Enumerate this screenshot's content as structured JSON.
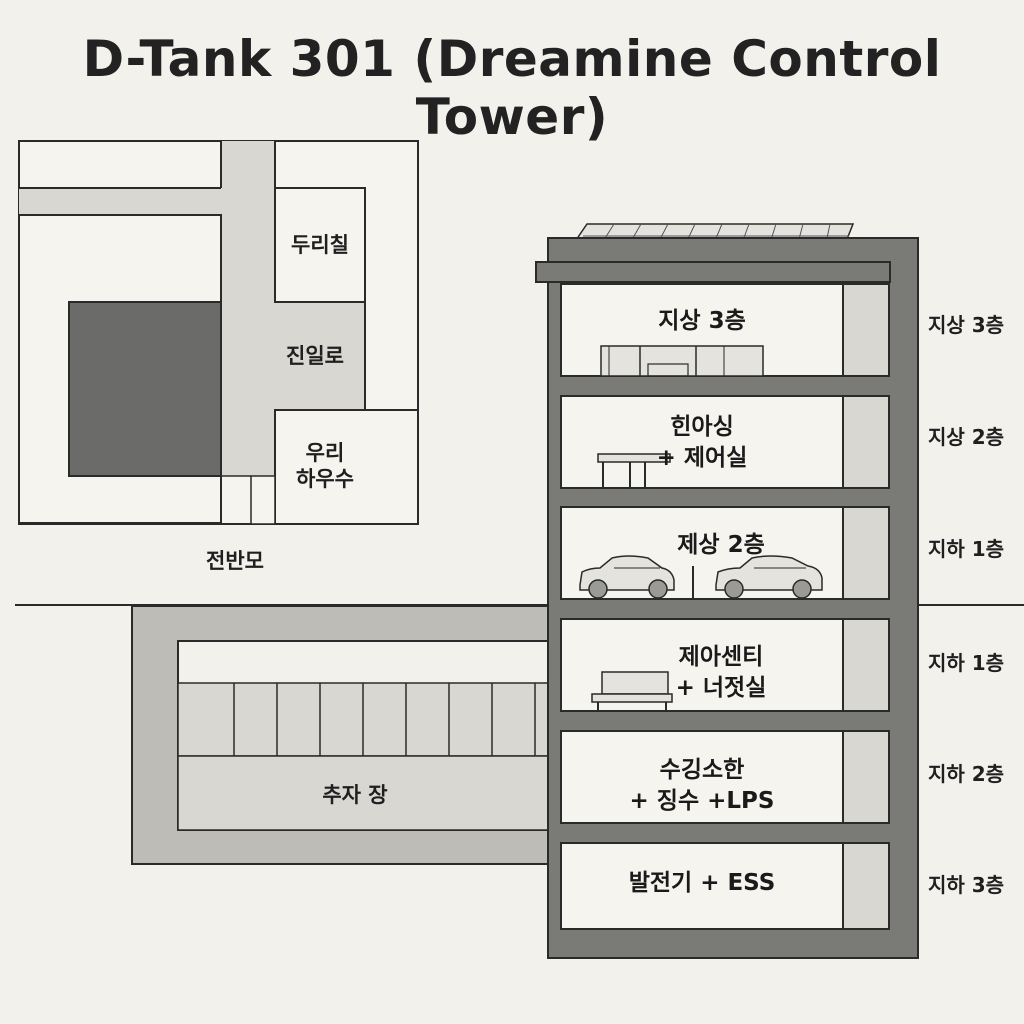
{
  "title": "D-Tank 301 (Dreamine Control Tower)",
  "site_plan": {
    "room_top": "두리칠",
    "corridor": "진일로",
    "house": "우리\n하우수",
    "road": "전반모"
  },
  "parking": {
    "label": "추자 장"
  },
  "floors": [
    {
      "title": "지상 3층",
      "side_label": "지상 3층",
      "icon": "furniture-icon"
    },
    {
      "title": "힌아싱\n+ 제어실",
      "side_label": "지상 2층",
      "icon": "desk-icon"
    },
    {
      "title": "제상 2층",
      "side_label": "지하 1층",
      "icon": "car-icon"
    },
    {
      "title": "제아센티\n+ 너젓실",
      "side_label": "지하 1층",
      "icon": "bench-icon"
    },
    {
      "title": "수깅소한\n+ 징수 +LPS",
      "side_label": "지하 2층",
      "icon": ""
    },
    {
      "title": "발전기 + ESS",
      "side_label": "지하 3층",
      "icon": ""
    }
  ],
  "colors": {
    "background": "#f3f1ec",
    "wall": "#7a7a76",
    "light_gray": "#d8d7d2",
    "dark_block": "#6b6b69",
    "line": "#2a2a2a"
  }
}
